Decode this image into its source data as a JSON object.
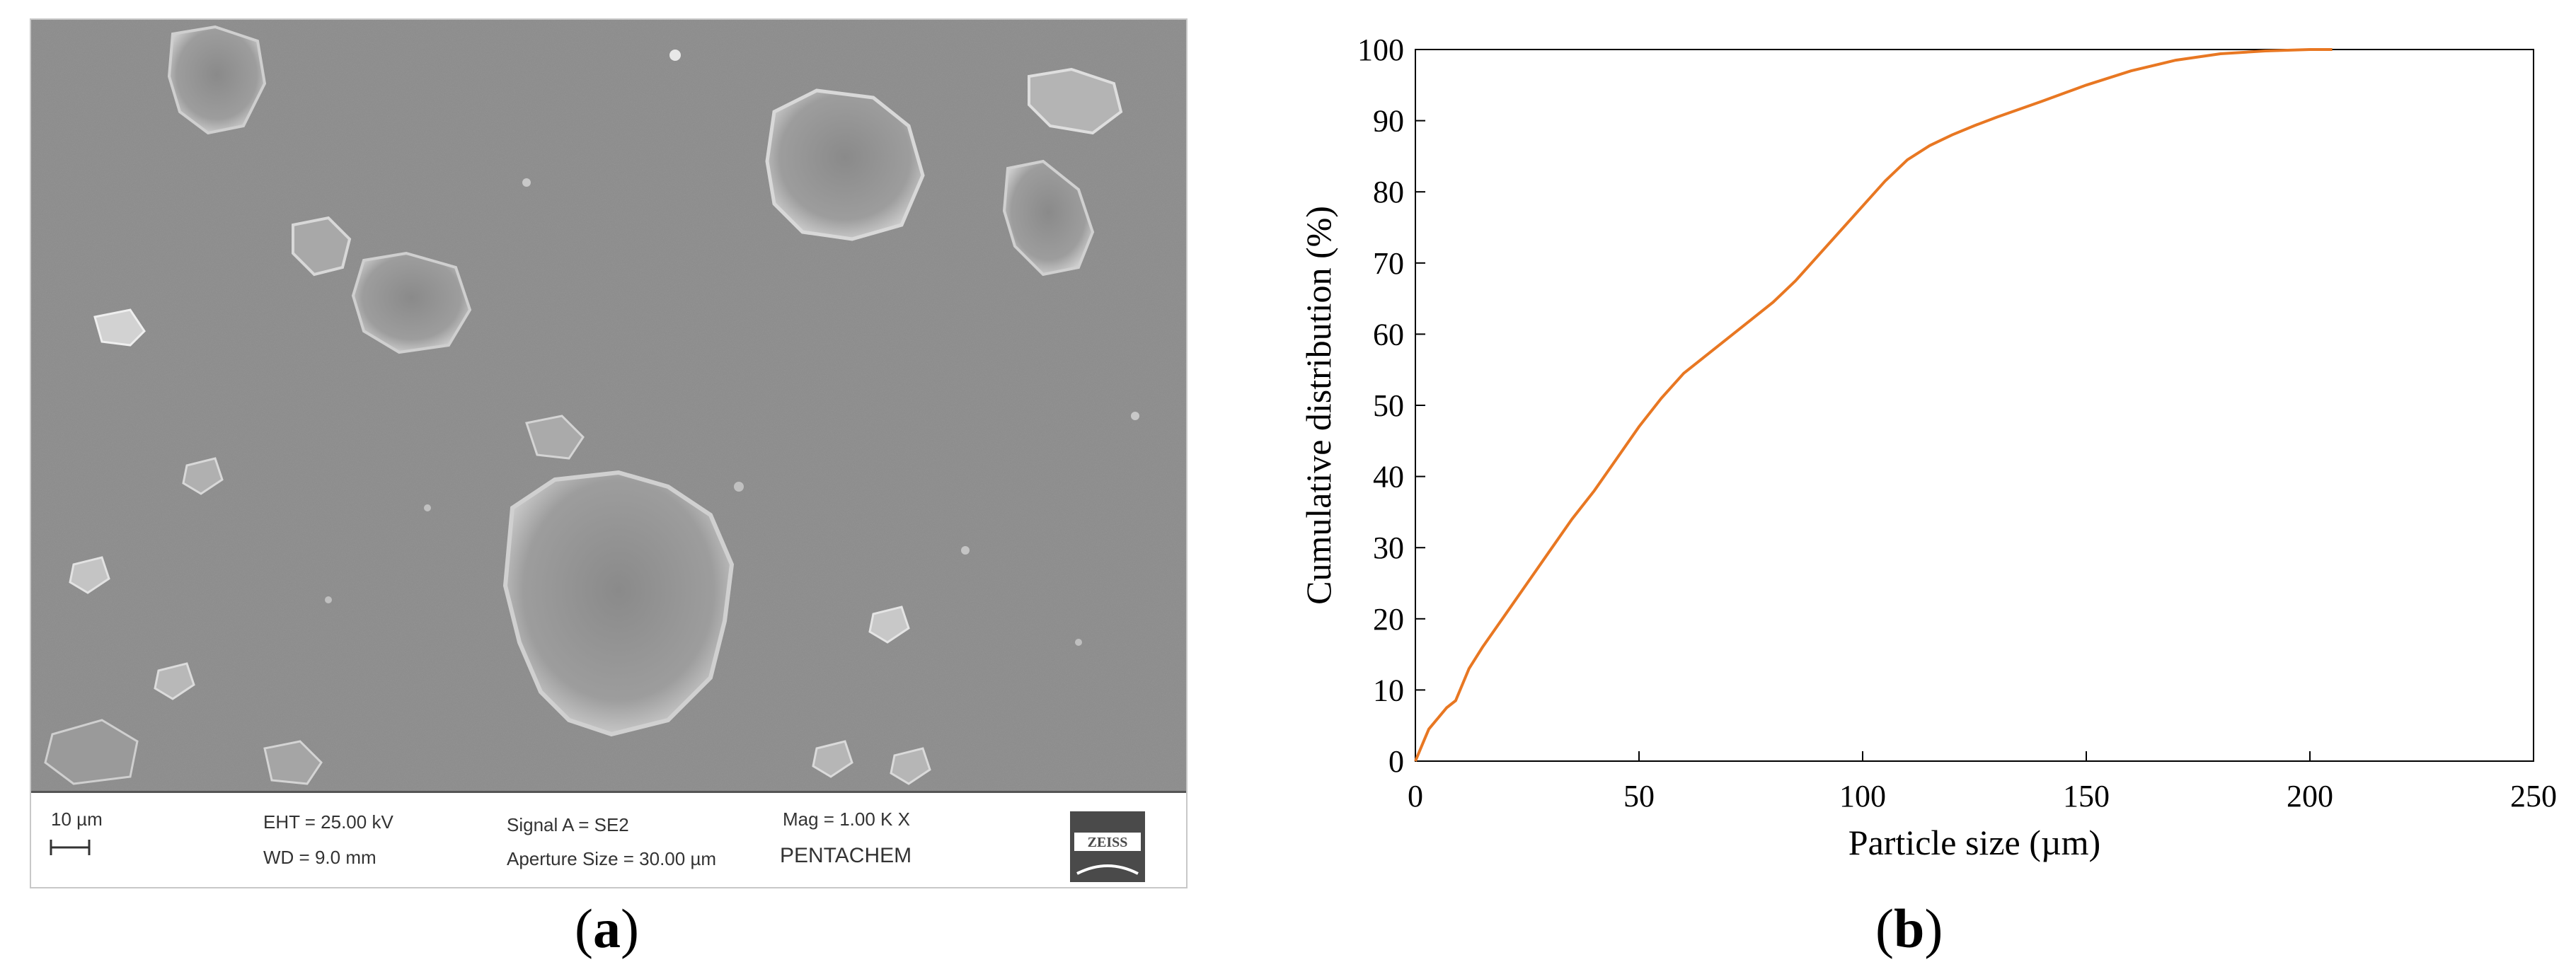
{
  "figure": {
    "panel_a": {
      "label": "a",
      "databar": {
        "scale_label": "10 µm",
        "eht": "EHT = 25.00 kV",
        "wd": "WD =  9.0 mm",
        "signal": "Signal A = SE2",
        "aperture": "Aperture Size = 30.00 µm",
        "mag": "Mag =    1.00 K X",
        "operator": "PENTACHEM",
        "logo_text": "ZEISS"
      }
    },
    "panel_b": {
      "label": "b"
    }
  },
  "chart_data": {
    "type": "line",
    "title": "",
    "xlabel": "Particle size (µm)",
    "ylabel": "Cumulative distribution (%)",
    "xlim": [
      0,
      250
    ],
    "ylim": [
      0,
      100
    ],
    "xticks": [
      0,
      50,
      100,
      150,
      200,
      250
    ],
    "yticks": [
      0,
      10,
      20,
      30,
      40,
      50,
      60,
      70,
      80,
      90,
      100
    ],
    "grid": false,
    "legend": "none",
    "series": [
      {
        "color": "#E87722",
        "x": [
          0,
          1,
          2,
          3,
          5,
          7,
          9,
          10,
          12,
          15,
          20,
          25,
          30,
          35,
          40,
          45,
          50,
          55,
          60,
          65,
          70,
          75,
          80,
          85,
          90,
          95,
          100,
          105,
          110,
          115,
          120,
          125,
          130,
          140,
          150,
          160,
          170,
          180,
          190,
          200,
          205
        ],
        "y": [
          0,
          1.5,
          3,
          4.5,
          6,
          7.5,
          8.5,
          10,
          13,
          16,
          20.5,
          25,
          29.5,
          34,
          38,
          42.5,
          47,
          51,
          54.5,
          57,
          59.5,
          62,
          64.5,
          67.5,
          71,
          74.5,
          78,
          81.5,
          84.5,
          86.5,
          88,
          89.3,
          90.5,
          92.7,
          95,
          97,
          98.5,
          99.4,
          99.8,
          100,
          100
        ]
      }
    ]
  }
}
